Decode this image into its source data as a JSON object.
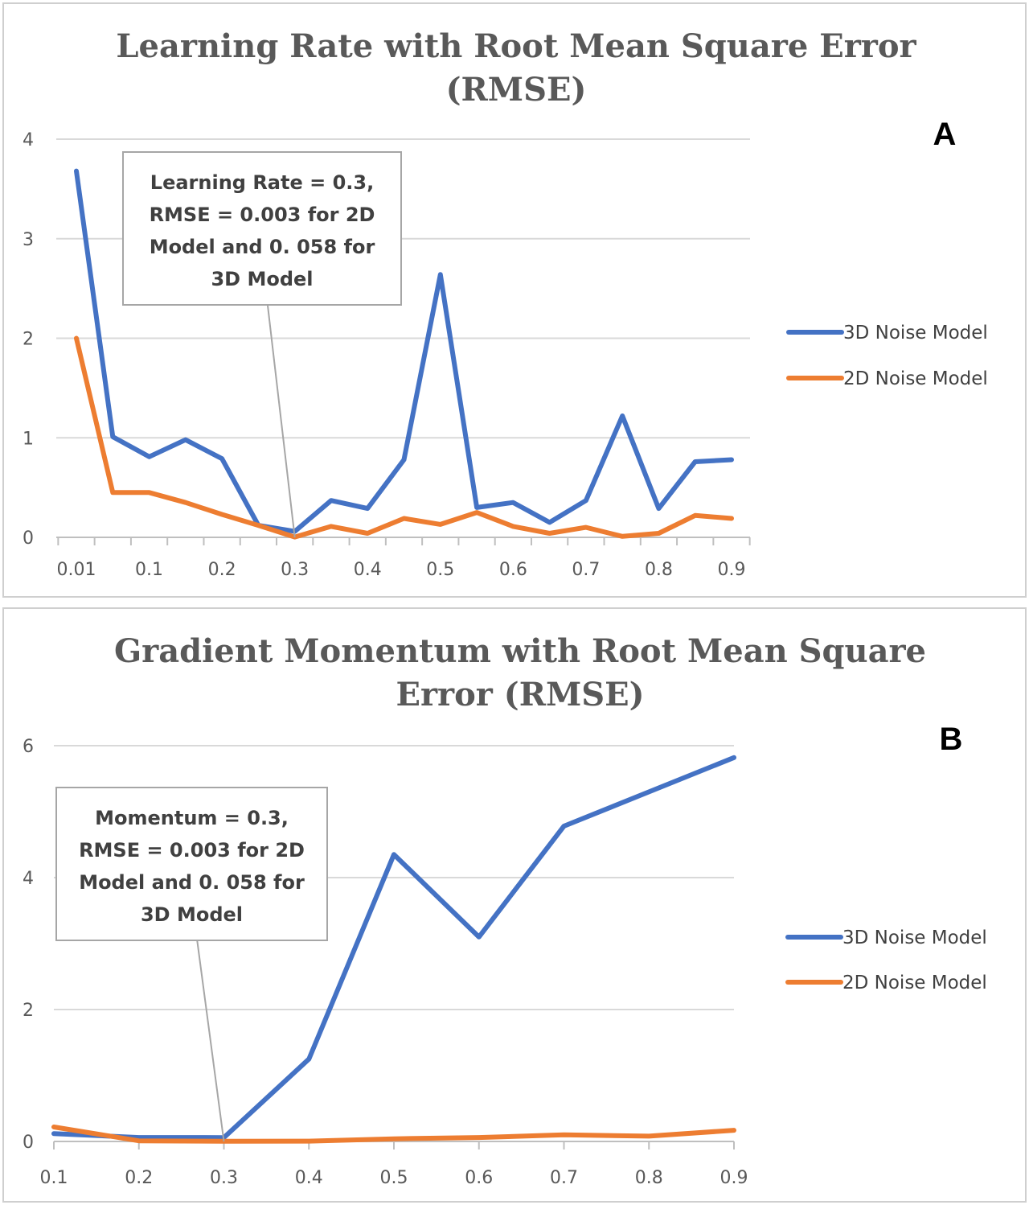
{
  "chart_data": [
    {
      "id": "A",
      "type": "line",
      "title_lines": [
        "Learning Rate with Root Mean Square Error",
        "(RMSE)"
      ],
      "panel_label": "A",
      "categories": [
        "0.01",
        "0.05",
        "0.1",
        "0.15",
        "0.2",
        "0.25",
        "0.3",
        "0.35",
        "0.4",
        "0.45",
        "0.5",
        "0.55",
        "0.6",
        "0.65",
        "0.7",
        "0.75",
        "0.8",
        "0.85",
        "0.9"
      ],
      "x_tick_labels": [
        "0.01",
        "",
        "0.1",
        "",
        "0.2",
        "",
        "0.3",
        "",
        "0.4",
        "",
        "0.5",
        "",
        "0.6",
        "",
        "0.7",
        "",
        "0.8",
        "",
        "0.9"
      ],
      "series": [
        {
          "name": "3D Noise Model",
          "color": "#4472C4",
          "values": [
            3.68,
            1.01,
            0.81,
            0.98,
            0.79,
            0.12,
            0.06,
            0.37,
            0.29,
            0.78,
            2.64,
            0.3,
            0.35,
            0.15,
            0.37,
            1.22,
            0.29,
            0.76,
            0.78
          ]
        },
        {
          "name": "2D Noise Model",
          "color": "#ED7D31",
          "values": [
            2.0,
            0.45,
            0.45,
            0.35,
            0.23,
            0.12,
            0.003,
            0.11,
            0.04,
            0.19,
            0.13,
            0.25,
            0.11,
            0.04,
            0.1,
            0.01,
            0.04,
            0.22,
            0.19
          ]
        }
      ],
      "ylim": [
        0,
        4
      ],
      "y_ticks": [
        0,
        1,
        2,
        3,
        4
      ],
      "grid": true,
      "legend_position": "right",
      "annotation": {
        "lines": [
          "Learning Rate = 0.3,",
          "RMSE = 0.003 for 2D",
          "Model and 0. 058 for",
          "3D Model"
        ],
        "points_to": "0.3"
      }
    },
    {
      "id": "B",
      "type": "line",
      "title_lines": [
        "Gradient Momentum with Root Mean Square",
        "Error (RMSE)"
      ],
      "panel_label": "B",
      "x": [
        0.1,
        0.2,
        0.3,
        0.4,
        0.5,
        0.6,
        0.7,
        0.8,
        0.9
      ],
      "x_tick_labels": [
        "0.1",
        "0.2",
        "0.3",
        "0.4",
        "0.5",
        "0.6",
        "0.7",
        "0.8",
        "0.9"
      ],
      "series": [
        {
          "name": "3D Noise Model",
          "color": "#4472C4",
          "values": [
            0.12,
            0.06,
            0.058,
            1.25,
            4.35,
            3.1,
            4.78,
            5.3,
            5.82
          ]
        },
        {
          "name": "2D Noise Model",
          "color": "#ED7D31",
          "values": [
            0.22,
            0.01,
            0.003,
            0.005,
            0.04,
            0.06,
            0.1,
            0.08,
            0.17
          ]
        }
      ],
      "ylim": [
        0,
        6
      ],
      "y_ticks": [
        0,
        2,
        4,
        6
      ],
      "grid": true,
      "legend_position": "right",
      "annotation": {
        "lines": [
          "Momentum = 0.3,",
          "RMSE = 0.003 for 2D",
          "Model and 0. 058 for",
          "3D Model"
        ],
        "points_to": "0.3"
      }
    }
  ]
}
